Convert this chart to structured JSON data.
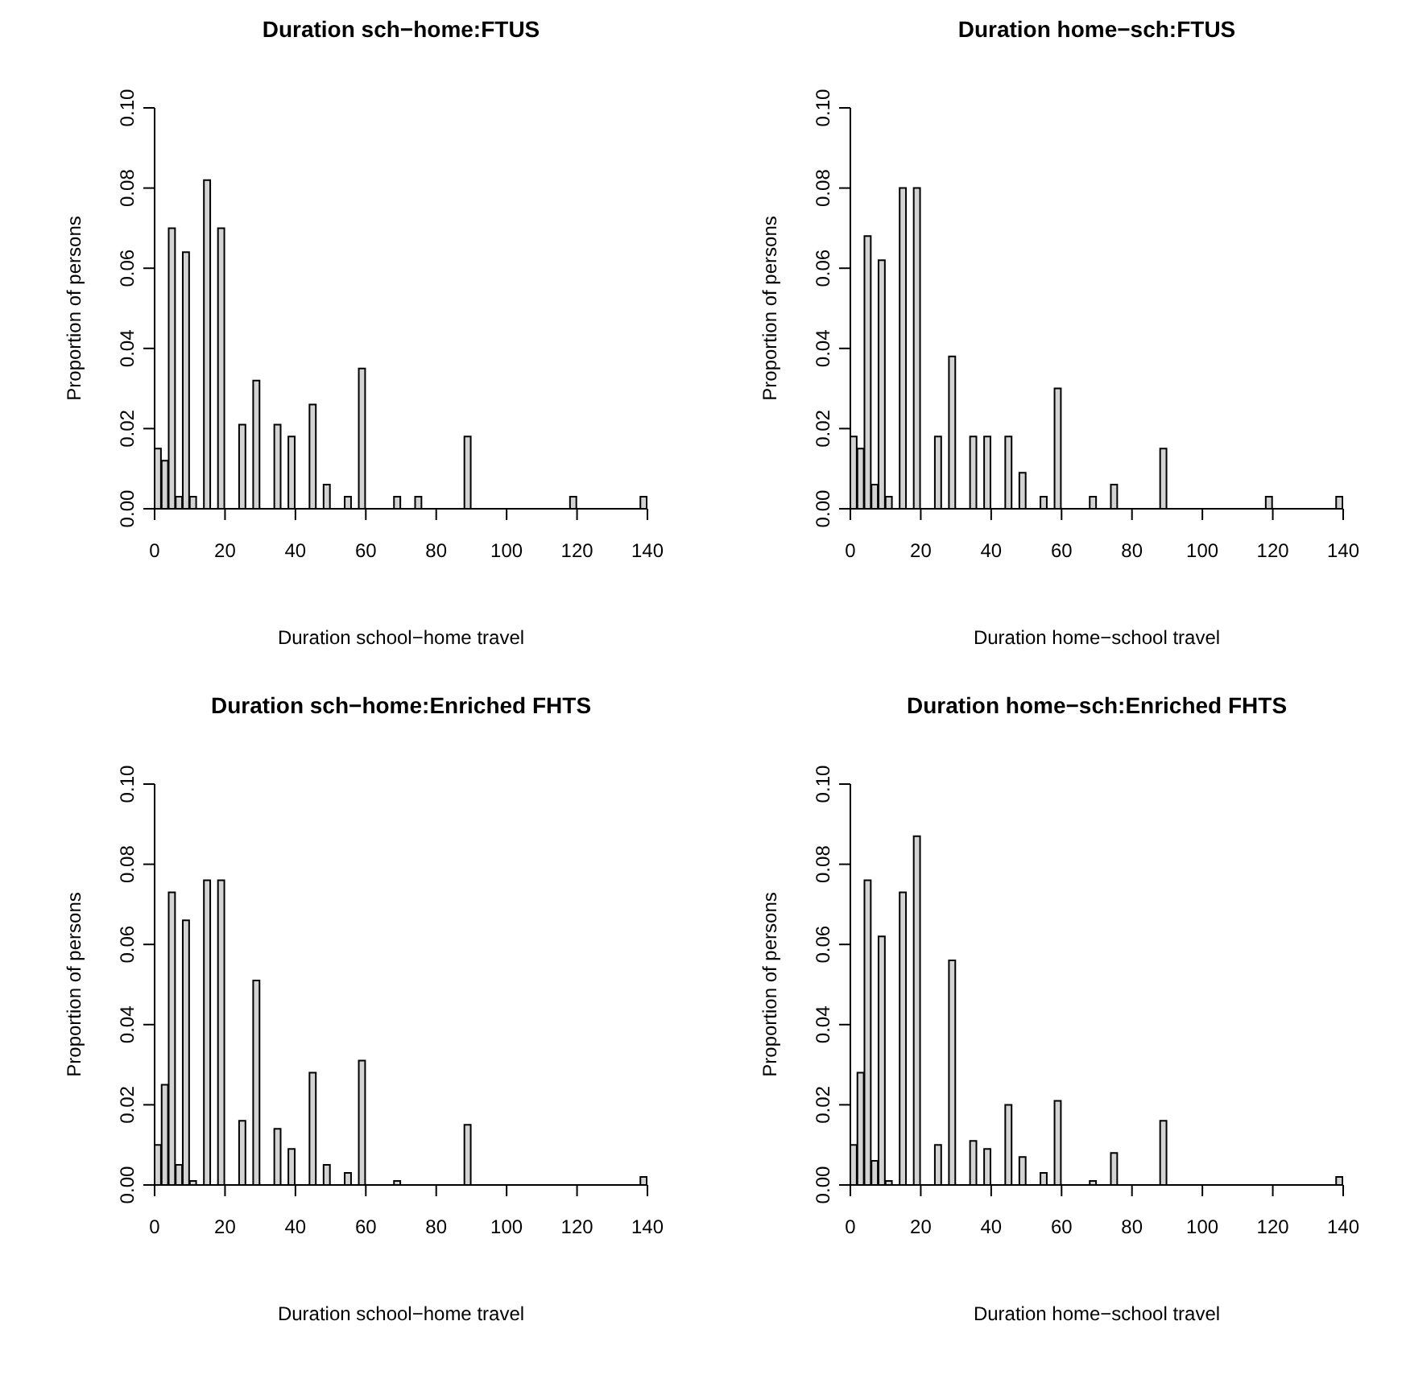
{
  "chart_data": [
    {
      "type": "histogram",
      "title": "Duration sch−home:FTUS",
      "xlabel": "Duration school−home travel",
      "ylabel": "Proportion of persons",
      "color": "#d3d3d3",
      "bins": [
        0,
        2,
        4,
        6,
        8,
        10,
        12,
        14,
        16,
        18,
        20,
        22,
        24,
        26,
        28,
        30,
        32,
        34,
        36,
        38,
        40,
        42,
        44,
        46,
        48,
        50,
        52,
        54,
        56,
        58,
        60,
        62,
        64,
        66,
        68,
        70,
        72,
        74,
        76,
        78,
        80,
        82,
        84,
        86,
        88,
        90,
        92,
        94,
        96,
        98,
        100,
        102,
        104,
        106,
        108,
        110,
        112,
        114,
        116,
        118,
        120,
        122,
        124,
        126,
        128,
        130,
        132,
        134,
        136,
        138,
        140
      ],
      "values": [
        0.015,
        0.012,
        0.07,
        0.003,
        0.064,
        0.003,
        0,
        0.082,
        0,
        0.07,
        0,
        0,
        0.021,
        0,
        0.032,
        0,
        0,
        0.021,
        0,
        0.018,
        0,
        0,
        0.026,
        0,
        0.006,
        0,
        0,
        0.003,
        0,
        0.035,
        0,
        0,
        0,
        0,
        0.003,
        0,
        0,
        0.003,
        0,
        0,
        0,
        0,
        0,
        0,
        0.018,
        0,
        0,
        0,
        0,
        0,
        0,
        0,
        0,
        0,
        0,
        0,
        0,
        0,
        0,
        0.003,
        0,
        0,
        0,
        0,
        0,
        0,
        0,
        0,
        0,
        0.003
      ],
      "xlim": [
        0,
        140
      ],
      "xticks": [
        0,
        20,
        40,
        60,
        80,
        100,
        120,
        140
      ],
      "ylim": [
        0,
        0.1
      ],
      "yticks": [
        {
          "value": 0,
          "label": "0.00"
        },
        {
          "value": 0.02,
          "label": "0.02"
        },
        {
          "value": 0.04,
          "label": "0.04"
        },
        {
          "value": 0.06,
          "label": "0.06"
        },
        {
          "value": 0.08,
          "label": "0.08"
        },
        {
          "value": 0.1,
          "label": "0.10"
        }
      ]
    },
    {
      "type": "histogram",
      "title": "Duration home−sch:FTUS",
      "xlabel": "Duration home−school travel",
      "ylabel": "Proportion of persons",
      "color": "#d3d3d3",
      "bins": [
        0,
        2,
        4,
        6,
        8,
        10,
        12,
        14,
        16,
        18,
        20,
        22,
        24,
        26,
        28,
        30,
        32,
        34,
        36,
        38,
        40,
        42,
        44,
        46,
        48,
        50,
        52,
        54,
        56,
        58,
        60,
        62,
        64,
        66,
        68,
        70,
        72,
        74,
        76,
        78,
        80,
        82,
        84,
        86,
        88,
        90,
        92,
        94,
        96,
        98,
        100,
        102,
        104,
        106,
        108,
        110,
        112,
        114,
        116,
        118,
        120,
        122,
        124,
        126,
        128,
        130,
        132,
        134,
        136,
        138,
        140
      ],
      "values": [
        0.018,
        0.015,
        0.068,
        0.006,
        0.062,
        0.003,
        0,
        0.08,
        0,
        0.08,
        0,
        0,
        0.018,
        0,
        0.038,
        0,
        0,
        0.018,
        0,
        0.018,
        0,
        0,
        0.018,
        0,
        0.009,
        0,
        0,
        0.003,
        0,
        0.03,
        0,
        0,
        0,
        0,
        0.003,
        0,
        0,
        0.006,
        0,
        0,
        0,
        0,
        0,
        0,
        0.015,
        0,
        0,
        0,
        0,
        0,
        0,
        0,
        0,
        0,
        0,
        0,
        0,
        0,
        0,
        0.003,
        0,
        0,
        0,
        0,
        0,
        0,
        0,
        0,
        0,
        0.003
      ],
      "xlim": [
        0,
        140
      ],
      "xticks": [
        0,
        20,
        40,
        60,
        80,
        100,
        120,
        140
      ],
      "ylim": [
        0,
        0.1
      ],
      "yticks": [
        {
          "value": 0,
          "label": "0.00"
        },
        {
          "value": 0.02,
          "label": "0.02"
        },
        {
          "value": 0.04,
          "label": "0.04"
        },
        {
          "value": 0.06,
          "label": "0.06"
        },
        {
          "value": 0.08,
          "label": "0.08"
        },
        {
          "value": 0.1,
          "label": "0.10"
        }
      ]
    },
    {
      "type": "histogram",
      "title": "Duration sch−home:Enriched FHTS",
      "xlabel": "Duration school−home travel",
      "ylabel": "Proportion of persons",
      "color": "#d3d3d3",
      "bins": [
        0,
        2,
        4,
        6,
        8,
        10,
        12,
        14,
        16,
        18,
        20,
        22,
        24,
        26,
        28,
        30,
        32,
        34,
        36,
        38,
        40,
        42,
        44,
        46,
        48,
        50,
        52,
        54,
        56,
        58,
        60,
        62,
        64,
        66,
        68,
        70,
        72,
        74,
        76,
        78,
        80,
        82,
        84,
        86,
        88,
        90,
        92,
        94,
        96,
        98,
        100,
        102,
        104,
        106,
        108,
        110,
        112,
        114,
        116,
        118,
        120,
        122,
        124,
        126,
        128,
        130,
        132,
        134,
        136,
        138,
        140
      ],
      "values": [
        0.01,
        0.025,
        0.073,
        0.005,
        0.066,
        0.001,
        0,
        0.076,
        0,
        0.076,
        0,
        0,
        0.016,
        0,
        0.051,
        0,
        0,
        0.014,
        0,
        0.009,
        0,
        0,
        0.028,
        0,
        0.005,
        0,
        0,
        0.003,
        0,
        0.031,
        0,
        0,
        0,
        0,
        0.001,
        0,
        0,
        0,
        0,
        0,
        0,
        0,
        0,
        0,
        0.015,
        0,
        0,
        0,
        0,
        0,
        0,
        0,
        0,
        0,
        0,
        0,
        0,
        0,
        0,
        0,
        0,
        0,
        0,
        0,
        0,
        0,
        0,
        0,
        0,
        0.002
      ],
      "xlim": [
        0,
        140
      ],
      "xticks": [
        0,
        20,
        40,
        60,
        80,
        100,
        120,
        140
      ],
      "ylim": [
        0,
        0.1
      ],
      "yticks": [
        {
          "value": 0,
          "label": "0.00"
        },
        {
          "value": 0.02,
          "label": "0.02"
        },
        {
          "value": 0.04,
          "label": "0.04"
        },
        {
          "value": 0.06,
          "label": "0.06"
        },
        {
          "value": 0.08,
          "label": "0.08"
        },
        {
          "value": 0.1,
          "label": "0.10"
        }
      ]
    },
    {
      "type": "histogram",
      "title": "Duration home−sch:Enriched FHTS",
      "xlabel": "Duration home−school travel",
      "ylabel": "Proportion of persons",
      "color": "#d3d3d3",
      "bins": [
        0,
        2,
        4,
        6,
        8,
        10,
        12,
        14,
        16,
        18,
        20,
        22,
        24,
        26,
        28,
        30,
        32,
        34,
        36,
        38,
        40,
        42,
        44,
        46,
        48,
        50,
        52,
        54,
        56,
        58,
        60,
        62,
        64,
        66,
        68,
        70,
        72,
        74,
        76,
        78,
        80,
        82,
        84,
        86,
        88,
        90,
        92,
        94,
        96,
        98,
        100,
        102,
        104,
        106,
        108,
        110,
        112,
        114,
        116,
        118,
        120,
        122,
        124,
        126,
        128,
        130,
        132,
        134,
        136,
        138,
        140
      ],
      "values": [
        0.01,
        0.028,
        0.076,
        0.006,
        0.062,
        0.001,
        0,
        0.073,
        0,
        0.087,
        0,
        0,
        0.01,
        0,
        0.056,
        0,
        0,
        0.011,
        0,
        0.009,
        0,
        0,
        0.02,
        0,
        0.007,
        0,
        0,
        0.003,
        0,
        0.021,
        0,
        0,
        0,
        0,
        0.001,
        0,
        0,
        0.008,
        0,
        0,
        0,
        0,
        0,
        0,
        0.016,
        0,
        0,
        0,
        0,
        0,
        0,
        0,
        0,
        0,
        0,
        0,
        0,
        0,
        0,
        0,
        0,
        0,
        0,
        0,
        0,
        0,
        0,
        0,
        0,
        0.002
      ],
      "xlim": [
        0,
        140
      ],
      "xticks": [
        0,
        20,
        40,
        60,
        80,
        100,
        120,
        140
      ],
      "ylim": [
        0,
        0.1
      ],
      "yticks": [
        {
          "value": 0,
          "label": "0.00"
        },
        {
          "value": 0.02,
          "label": "0.02"
        },
        {
          "value": 0.04,
          "label": "0.04"
        },
        {
          "value": 0.06,
          "label": "0.06"
        },
        {
          "value": 0.08,
          "label": "0.08"
        },
        {
          "value": 0.1,
          "label": "0.10"
        }
      ]
    }
  ]
}
